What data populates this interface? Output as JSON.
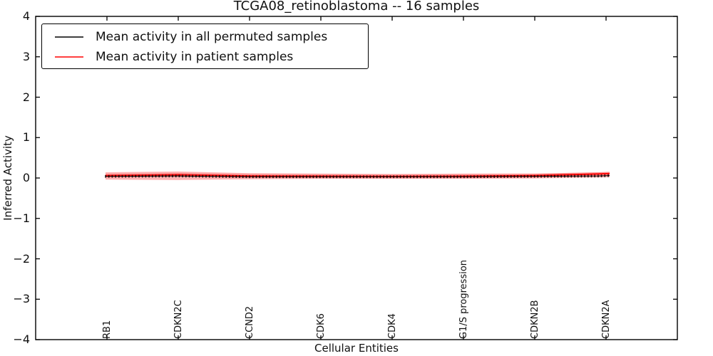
{
  "chart_data": {
    "type": "line",
    "title": "TCGA08_retinoblastoma -- 16 samples",
    "xlabel": "Cellular Entities",
    "ylabel": "Inferred Activity",
    "xlim": [
      0,
      9
    ],
    "ylim": [
      -4,
      4
    ],
    "grid": false,
    "background_color": "#ffffff",
    "frame_color": "#000000",
    "y_ticks": {
      "values": [
        4,
        3,
        2,
        1,
        0,
        -1,
        -2,
        -3,
        -4
      ],
      "labels": [
        "4",
        "3",
        "2",
        "1",
        "0",
        "−1",
        "−2",
        "−3",
        "−4"
      ]
    },
    "x_ticks": {
      "positions": [
        1,
        2,
        3,
        4,
        5,
        6,
        7,
        8
      ],
      "labels": [
        "RB1",
        "CDKN2C",
        "CCND2",
        "CDK6",
        "CDK4",
        "G1/S progression",
        "CDKN2B",
        "CDKN2A"
      ]
    },
    "legend": {
      "position": "upper left",
      "entries": [
        {
          "label": "Mean activity in all permuted samples",
          "color": "#000000"
        },
        {
          "label": "Mean activity in patient samples",
          "color": "#ff0000"
        }
      ]
    },
    "series": [
      {
        "name": "Mean activity in all permuted samples",
        "color": "#000000",
        "marker": "+",
        "x": [
          0.98,
          2,
          3,
          4,
          5,
          6,
          7,
          7.9,
          8.05
        ],
        "y": [
          0.04,
          0.05,
          0.03,
          0.03,
          0.03,
          0.03,
          0.04,
          0.05,
          0.06
        ]
      },
      {
        "name": "Mean activity in patient samples",
        "color": "#ff0000",
        "marker": null,
        "x": [
          0.98,
          2,
          3,
          4,
          5,
          6,
          7,
          7.9,
          8.05
        ],
        "y": [
          0.06,
          0.08,
          0.05,
          0.045,
          0.04,
          0.045,
          0.06,
          0.1,
          0.11
        ]
      }
    ],
    "band": {
      "color": "#ff0000",
      "opacity": 0.3,
      "x": [
        0.98,
        2,
        3,
        4,
        5,
        6,
        7,
        7.9,
        8.05
      ],
      "upper": [
        0.14,
        0.16,
        0.12,
        0.11,
        0.1,
        0.11,
        0.11,
        0.14,
        0.15
      ],
      "lower": [
        -0.04,
        -0.05,
        -0.03,
        -0.02,
        -0.02,
        -0.02,
        -0.01,
        0.01,
        0.02
      ]
    }
  }
}
